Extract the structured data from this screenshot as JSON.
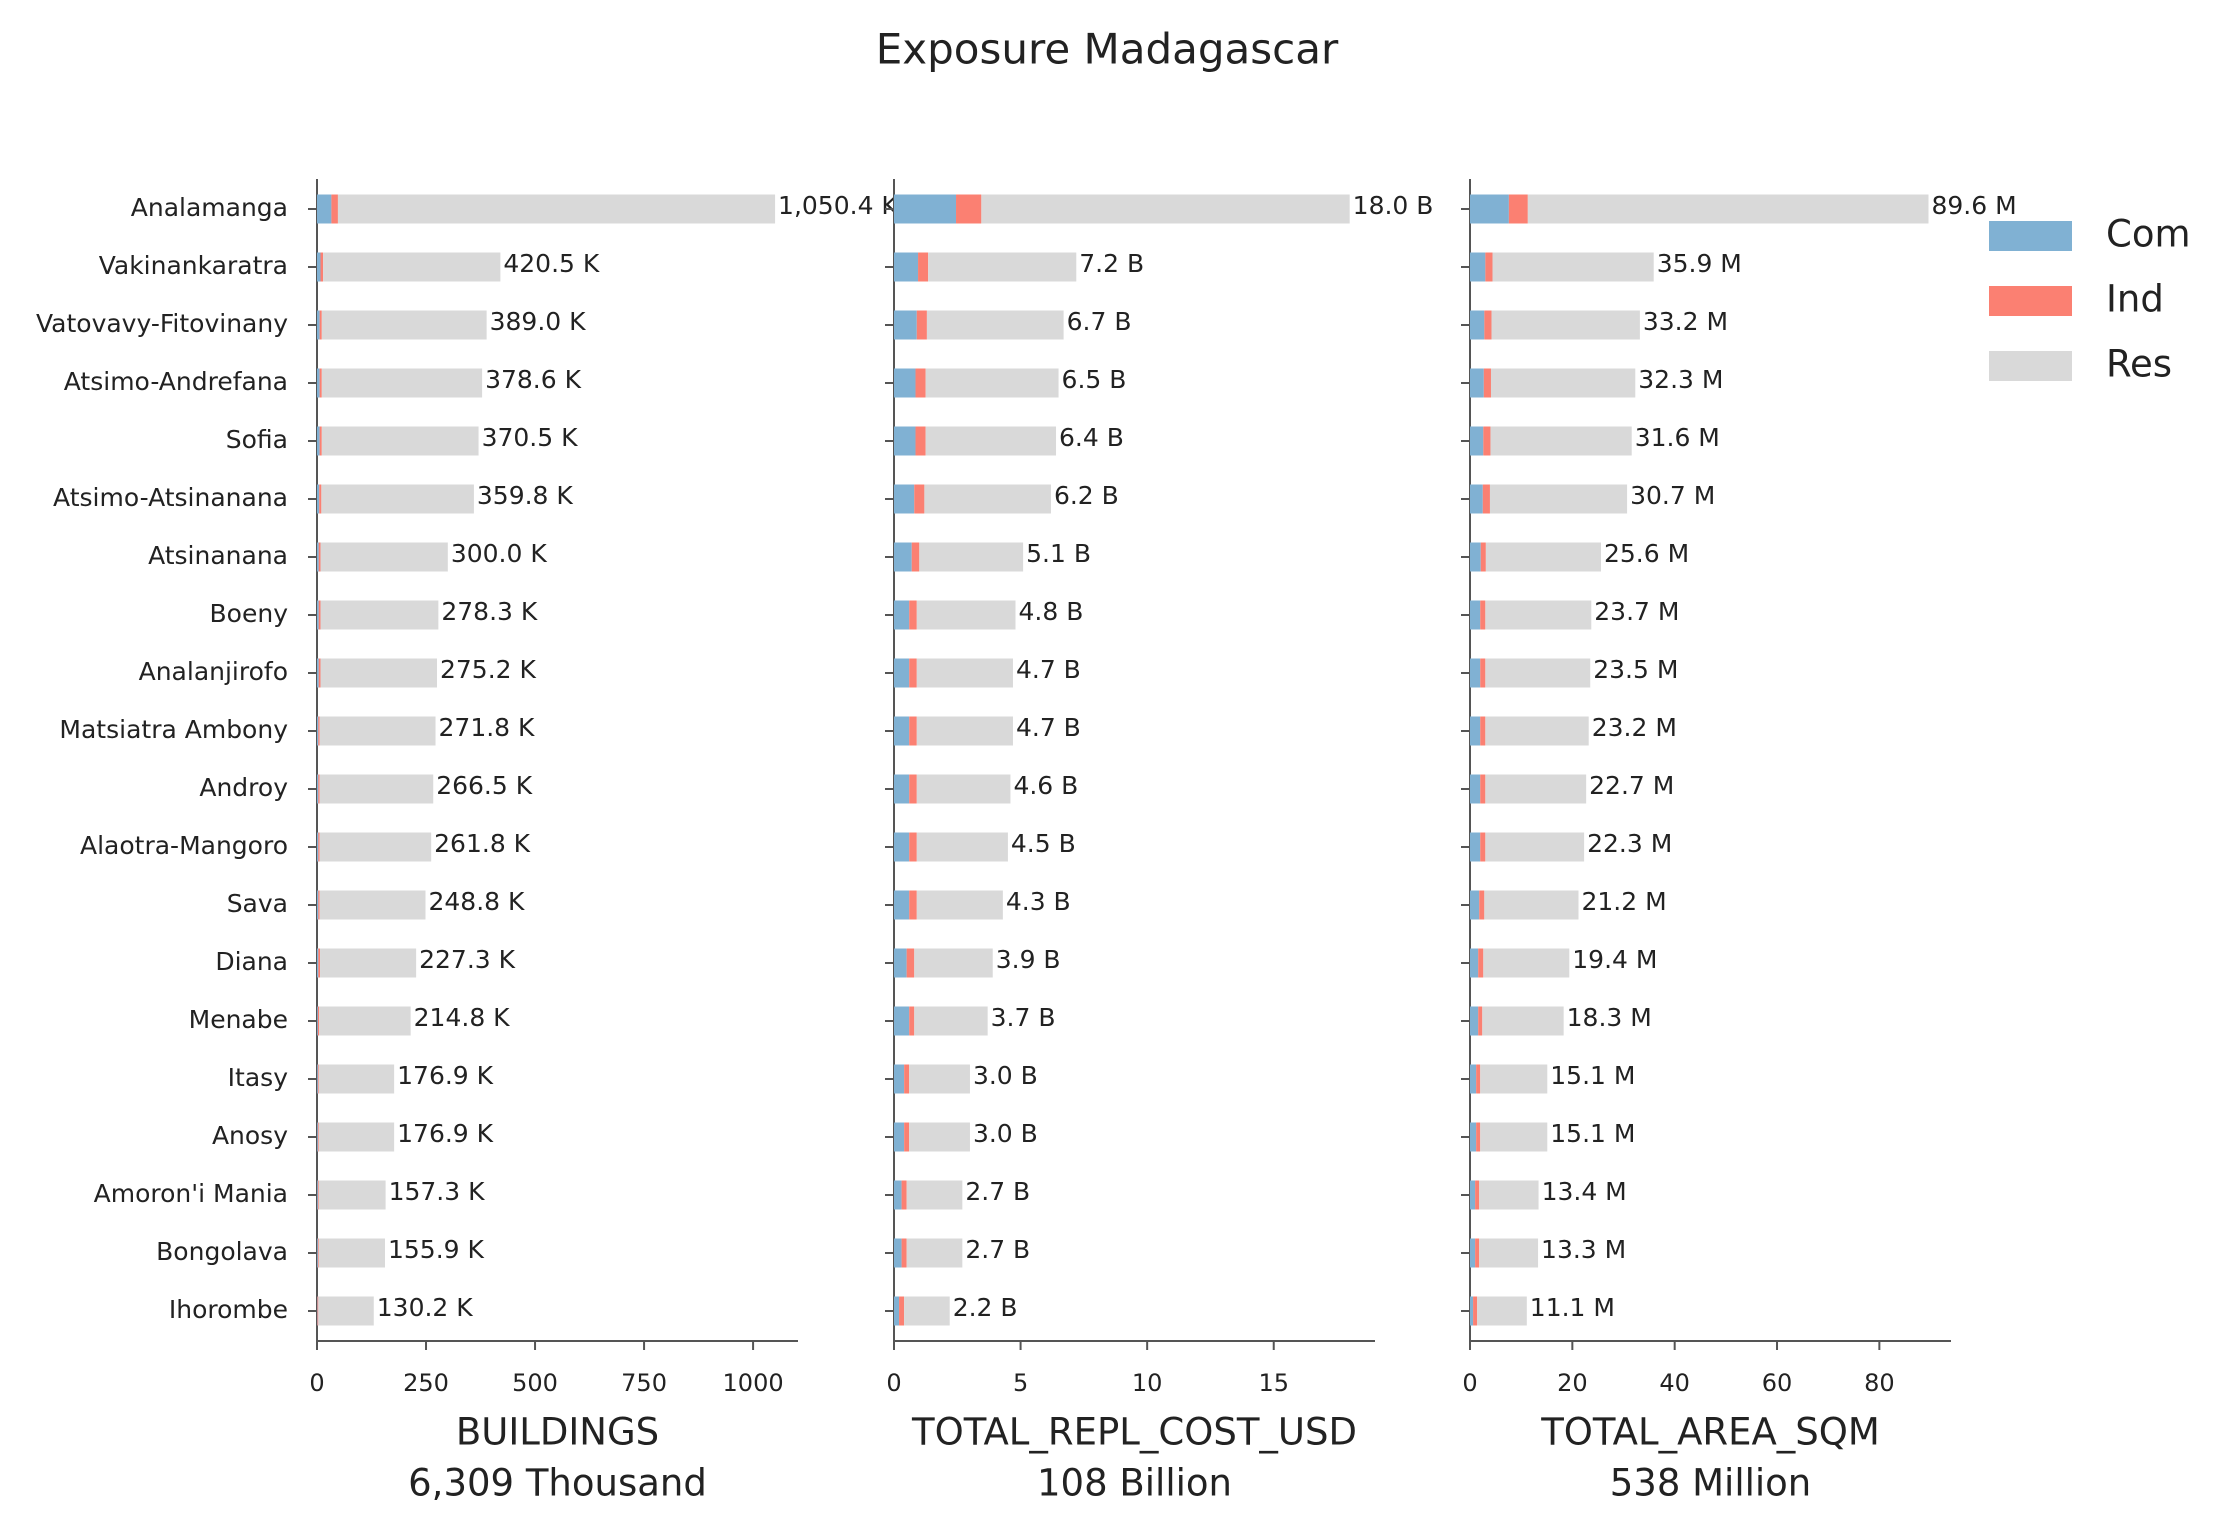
{
  "title": "Exposure Madagascar",
  "chart_data": {
    "type": "bar",
    "orientation": "horizontal",
    "stacked": true,
    "legend": "upper right",
    "categories": [
      "Analamanga",
      "Vakinankaratra",
      "Vatovavy-Fitovinany",
      "Atsimo-Andrefana",
      "Sofia",
      "Atsimo-Atsinanana",
      "Atsinanana",
      "Boeny",
      "Analanjirofo",
      "Matsiatra Ambony",
      "Androy",
      "Alaotra-Mangoro",
      "Sava",
      "Diana",
      "Menabe",
      "Itasy",
      "Anosy",
      "Amoron'i Mania",
      "Bongolava",
      "Ihorombe"
    ],
    "series": [
      {
        "name": "Com",
        "color": "#80b1d3"
      },
      {
        "name": "Ind",
        "color": "#fb8072"
      },
      {
        "name": "Res",
        "color": "#d9d9d9"
      }
    ],
    "panels": [
      {
        "xlabel": "BUILDINGS",
        "total_label": "6,309 Thousand",
        "xlim": [
          0,
          1103
        ],
        "xticks": [
          0,
          250,
          500,
          750,
          1000
        ],
        "values": [
          [
            33,
            8,
            6,
            6,
            6,
            5,
            4,
            4,
            4,
            3,
            3,
            3,
            3,
            3,
            2,
            2,
            2,
            2,
            2,
            1
          ],
          [
            15,
            6,
            5,
            5,
            5,
            5,
            4,
            4,
            4,
            3,
            3,
            3,
            3,
            4,
            3,
            2,
            2,
            2,
            2,
            2
          ],
          [
            1002.4,
            406.5,
            378.0,
            367.6,
            359.5,
            349.8,
            292.0,
            270.3,
            267.2,
            265.8,
            260.5,
            255.8,
            242.8,
            220.3,
            209.8,
            172.9,
            172.9,
            153.3,
            151.9,
            127.2
          ]
        ],
        "totals": [
          1050.4,
          420.5,
          389.0,
          378.6,
          370.5,
          359.8,
          300.0,
          278.3,
          275.2,
          271.8,
          266.5,
          261.8,
          248.8,
          227.3,
          214.8,
          176.9,
          176.9,
          157.3,
          155.9,
          130.2
        ],
        "total_labels": [
          "1,050.4 K",
          "420.5 K",
          "389.0 K",
          "378.6 K",
          "370.5 K",
          "359.8 K",
          "300.0 K",
          "278.3 K",
          "275.2 K",
          "271.8 K",
          "266.5 K",
          "261.8 K",
          "248.8 K",
          "227.3 K",
          "214.8 K",
          "176.9 K",
          "176.9 K",
          "157.3 K",
          "155.9 K",
          "130.2 K"
        ]
      },
      {
        "xlabel": "TOTAL_REPL_COST_USD",
        "total_label": "108 Billion",
        "xlim": [
          0,
          19
        ],
        "xticks": [
          0,
          5,
          10,
          15
        ],
        "values": [
          [
            2.45,
            0.95,
            0.9,
            0.85,
            0.85,
            0.8,
            0.7,
            0.6,
            0.6,
            0.6,
            0.6,
            0.6,
            0.6,
            0.5,
            0.6,
            0.4,
            0.4,
            0.3,
            0.3,
            0.2
          ],
          [
            1.0,
            0.4,
            0.4,
            0.4,
            0.4,
            0.4,
            0.3,
            0.3,
            0.3,
            0.3,
            0.3,
            0.3,
            0.3,
            0.3,
            0.2,
            0.2,
            0.2,
            0.2,
            0.2,
            0.2
          ],
          [
            14.55,
            5.85,
            5.4,
            5.25,
            5.15,
            5.0,
            4.1,
            3.9,
            3.8,
            3.8,
            3.7,
            3.6,
            3.4,
            3.1,
            2.9,
            2.4,
            2.4,
            2.2,
            2.2,
            1.8
          ]
        ],
        "totals": [
          18.0,
          7.2,
          6.7,
          6.5,
          6.4,
          6.2,
          5.1,
          4.8,
          4.7,
          4.7,
          4.6,
          4.5,
          4.3,
          3.9,
          3.7,
          3.0,
          3.0,
          2.7,
          2.7,
          2.2
        ],
        "total_labels": [
          "18.0 B",
          "7.2 B",
          "6.7 B",
          "6.5 B",
          "6.4 B",
          "6.2 B",
          "5.1 B",
          "4.8 B",
          "4.7 B",
          "4.7 B",
          "4.6 B",
          "4.5 B",
          "4.3 B",
          "3.9 B",
          "3.7 B",
          "3.0 B",
          "3.0 B",
          "2.7 B",
          "2.7 B",
          "2.2 B"
        ]
      },
      {
        "xlabel": "TOTAL_AREA_SQM",
        "total_label": "538 Million",
        "xlim": [
          0,
          94
        ],
        "xticks": [
          0,
          20,
          40,
          60,
          80
        ],
        "values": [
          [
            7.6,
            3.0,
            2.8,
            2.7,
            2.6,
            2.5,
            2.1,
            2.0,
            2.0,
            2.0,
            2.0,
            2.0,
            1.8,
            1.6,
            1.6,
            1.2,
            1.2,
            1.0,
            1.0,
            0.6
          ],
          [
            3.7,
            1.4,
            1.4,
            1.4,
            1.4,
            1.4,
            1.0,
            1.0,
            1.0,
            1.0,
            1.0,
            1.0,
            1.0,
            1.0,
            0.8,
            0.8,
            0.8,
            0.8,
            0.8,
            0.8
          ],
          [
            78.3,
            31.5,
            29.0,
            28.2,
            27.6,
            26.8,
            22.5,
            20.7,
            20.5,
            20.2,
            19.7,
            19.3,
            18.4,
            16.8,
            15.9,
            13.1,
            13.1,
            11.6,
            11.5,
            9.7
          ]
        ],
        "totals": [
          89.6,
          35.9,
          33.2,
          32.3,
          31.6,
          30.7,
          25.6,
          23.7,
          23.5,
          23.2,
          22.7,
          22.3,
          21.2,
          19.4,
          18.3,
          15.1,
          15.1,
          13.4,
          13.3,
          11.1
        ],
        "total_labels": [
          "89.6 M",
          "35.9 M",
          "33.2 M",
          "32.3 M",
          "31.6 M",
          "30.7 M",
          "25.6 M",
          "23.7 M",
          "23.5 M",
          "23.2 M",
          "22.7 M",
          "22.3 M",
          "21.2 M",
          "19.4 M",
          "18.3 M",
          "15.1 M",
          "15.1 M",
          "13.4 M",
          "13.3 M",
          "11.1 M"
        ]
      }
    ]
  }
}
